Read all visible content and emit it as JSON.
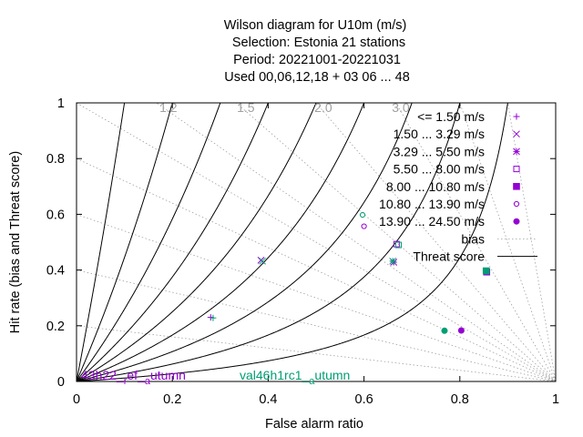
{
  "chart_data": {
    "type": "scatter",
    "title_lines": [
      "Wilson diagram  for U10m (m/s)",
      "Selection: Estonia      21 stations",
      "Period: 20221001-20221031",
      "Used  00,06,12,18  + 03 06 ... 48"
    ],
    "xlabel": "False alarm ratio",
    "ylabel": "Hit rate (bias and Threat score)",
    "xlim": [
      0,
      1
    ],
    "ylim": [
      0,
      1
    ],
    "x_ticks": [
      "0",
      "0.2",
      "0.4",
      "0.6",
      "0.8",
      "1"
    ],
    "y_ticks": [
      "0",
      "0.2",
      "0.4",
      "0.6",
      "0.8",
      "1"
    ],
    "bias_values": [
      0.2,
      0.4,
      0.6,
      0.8,
      1.0,
      1.2,
      1.5,
      2.0,
      3.0,
      5.0,
      10.0
    ],
    "bias_labels": [
      {
        "text": "1.2",
        "value": 1.2
      },
      {
        "text": "1.5",
        "value": 1.5
      },
      {
        "text": "2.0",
        "value": 2.0
      },
      {
        "text": "3.0",
        "value": 3.0
      }
    ],
    "threat_scores": [
      0.1,
      0.2,
      0.3,
      0.4,
      0.5,
      0.6,
      0.7,
      0.8,
      0.9
    ],
    "legend": [
      {
        "label": "<= 1.50 m/s",
        "marker": "plus"
      },
      {
        "label": "1.50 ... 3.29 m/s",
        "marker": "cross"
      },
      {
        "label": "3.29 ... 5.50 m/s",
        "marker": "star"
      },
      {
        "label": "5.50 ... 8.00 m/s",
        "marker": "open-square"
      },
      {
        "label": "8.00 ... 10.80 m/s",
        "marker": "filled-square"
      },
      {
        "label": "10.80 ... 13.90 m/s",
        "marker": "open-circle"
      },
      {
        "label": "13.90 ... 24.50 m/s",
        "marker": "filled-circle"
      },
      {
        "label": "bias",
        "marker": "dotted-line"
      },
      {
        "label": "Threat score",
        "marker": "solid-line"
      }
    ],
    "series": [
      {
        "name": "43h22 ref autumn",
        "color": "#9400d3",
        "points": [
          {
            "class": 0,
            "far": 0.28,
            "hit": 0.23
          },
          {
            "class": 1,
            "far": 0.385,
            "hit": 0.435
          },
          {
            "class": 2,
            "far": 0.662,
            "hit": 0.428
          },
          {
            "class": 3,
            "far": 0.668,
            "hit": 0.493
          },
          {
            "class": 4,
            "far": 0.856,
            "hit": 0.393
          },
          {
            "class": 5,
            "far": 0.6,
            "hit": 0.557
          },
          {
            "class": 6,
            "far": 0.803,
            "hit": 0.183
          }
        ]
      },
      {
        "name": "val46h1rc1 autumn",
        "color": "#009e73",
        "points": [
          {
            "class": 0,
            "far": 0.285,
            "hit": 0.228
          },
          {
            "class": 1,
            "far": 0.388,
            "hit": 0.432
          },
          {
            "class": 2,
            "far": 0.66,
            "hit": 0.432
          },
          {
            "class": 3,
            "far": 0.672,
            "hit": 0.49
          },
          {
            "class": 4,
            "far": 0.855,
            "hit": 0.397
          },
          {
            "class": 5,
            "far": 0.597,
            "hit": 0.598
          },
          {
            "class": 6,
            "far": 0.768,
            "hit": 0.182
          }
        ]
      }
    ],
    "footnotes": [
      {
        "prefix": "43h22_",
        "sub1": "r",
        "mid": "ef_",
        "sub2": "a",
        "suffix": "utumn",
        "color": "#9400d3"
      },
      {
        "prefix": "val46h1rc1_",
        "sub1": "a",
        "mid": "",
        "sub2": "",
        "suffix": "utumn",
        "color": "#009e73"
      }
    ]
  }
}
